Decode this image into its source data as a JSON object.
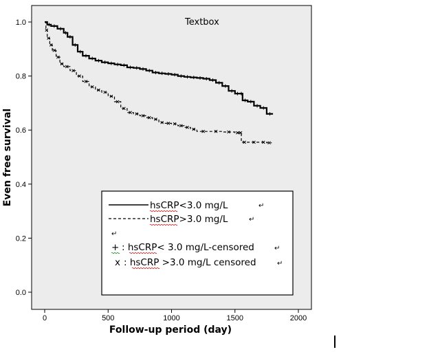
{
  "chart_data": {
    "type": "line",
    "xlabel": "Follow-up period (day)",
    "ylabel": "Even free survival",
    "xlim": [
      0,
      2000
    ],
    "ylim": [
      0,
      1.0
    ],
    "x_ticks": [
      0,
      500,
      1000,
      1500,
      2000
    ],
    "y_ticks": [
      0.0,
      0.2,
      0.4,
      0.6,
      0.8,
      1.0
    ],
    "grid": false,
    "annotation": "Textbox",
    "series": [
      {
        "name": "hsCRP<3.0 mg/L",
        "style": "solid",
        "color": "#000000",
        "x": [
          0,
          20,
          50,
          100,
          150,
          180,
          220,
          260,
          300,
          350,
          400,
          450,
          500,
          550,
          600,
          650,
          700,
          750,
          800,
          850,
          900,
          950,
          1000,
          1050,
          1100,
          1150,
          1200,
          1250,
          1300,
          1350,
          1400,
          1450,
          1500,
          1540,
          1560,
          1600,
          1650,
          1700,
          1750,
          1800
        ],
        "y": [
          1.0,
          0.99,
          0.985,
          0.975,
          0.96,
          0.945,
          0.915,
          0.89,
          0.875,
          0.865,
          0.857,
          0.851,
          0.847,
          0.843,
          0.84,
          0.832,
          0.83,
          0.826,
          0.82,
          0.813,
          0.81,
          0.808,
          0.805,
          0.8,
          0.797,
          0.795,
          0.793,
          0.79,
          0.785,
          0.775,
          0.763,
          0.745,
          0.735,
          0.735,
          0.71,
          0.705,
          0.69,
          0.682,
          0.66,
          0.66
        ]
      },
      {
        "name": "hsCRP>3.0 mg/L",
        "style": "dashed",
        "color": "#000000",
        "x": [
          0,
          10,
          20,
          40,
          60,
          90,
          120,
          150,
          200,
          250,
          300,
          350,
          400,
          450,
          500,
          550,
          600,
          650,
          700,
          750,
          800,
          850,
          900,
          950,
          1000,
          1050,
          1100,
          1150,
          1200,
          1300,
          1400,
          1500,
          1540,
          1550,
          1600,
          1700,
          1750,
          1790
        ],
        "y": [
          1.0,
          0.97,
          0.94,
          0.915,
          0.895,
          0.87,
          0.845,
          0.835,
          0.82,
          0.8,
          0.78,
          0.76,
          0.748,
          0.74,
          0.725,
          0.705,
          0.68,
          0.665,
          0.66,
          0.653,
          0.646,
          0.64,
          0.628,
          0.625,
          0.623,
          0.616,
          0.61,
          0.603,
          0.595,
          0.595,
          0.593,
          0.59,
          0.59,
          0.555,
          0.555,
          0.555,
          0.553,
          0.553
        ]
      }
    ],
    "legend": {
      "placement": "inside-bottom-right",
      "entries": [
        {
          "symbol": "solid-line",
          "label": "hsCRP<3.0 mg/L"
        },
        {
          "symbol": "dashed-line",
          "label": "hsCRP>3.0 mg/L"
        },
        {
          "symbol": "+",
          "label": ": hsCRP< 3.0 mg/L-censored"
        },
        {
          "symbol": "x",
          "label": ": hsCRP >3.0 mg/L censored"
        }
      ]
    }
  }
}
